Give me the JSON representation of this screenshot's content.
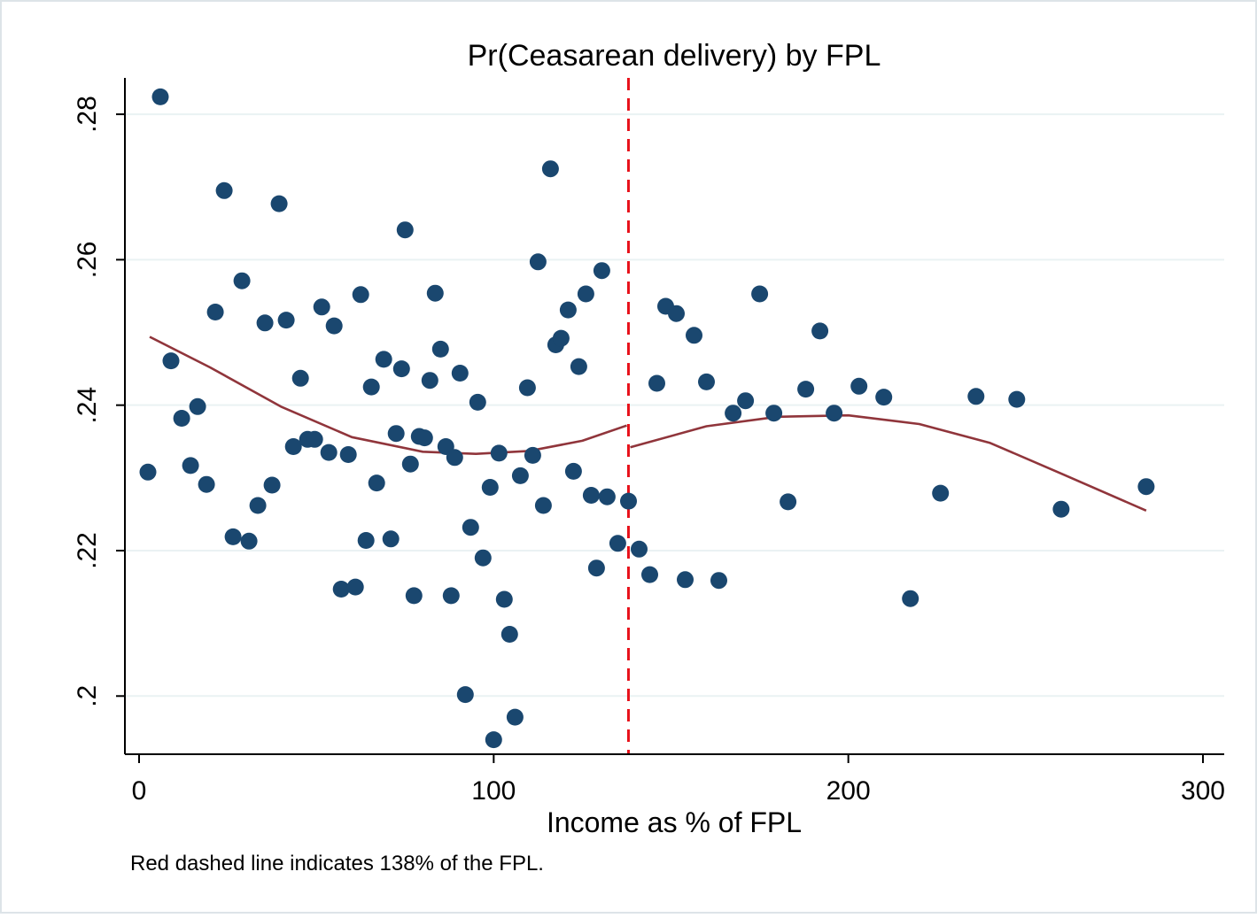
{
  "chart_data": {
    "type": "scatter",
    "title": "Pr(Ceasarean delivery) by FPL",
    "xlabel": "Income as % of FPL",
    "ylabel": "",
    "note": "Red dashed line indicates 138% of the FPL.",
    "xlim": [
      -4,
      306
    ],
    "ylim": [
      0.192,
      0.285
    ],
    "xticks": [
      0,
      100,
      200,
      300
    ],
    "xtick_labels": [
      "0",
      "100",
      "200",
      "300"
    ],
    "yticks": [
      0.2,
      0.22,
      0.24,
      0.26,
      0.28
    ],
    "ytick_labels": [
      ".2",
      ".22",
      ".24",
      ".26",
      ".28"
    ],
    "grid": true,
    "legend": "none",
    "threshold": {
      "x": 138,
      "color": "#e8111a",
      "style": "dashed"
    },
    "colors": {
      "points": "#1a476f",
      "fit": "#90353b",
      "grid": "#eaf2f3",
      "threshold": "#e8111a"
    },
    "points": [
      [
        2.5,
        0.2308
      ],
      [
        6,
        0.2824
      ],
      [
        9,
        0.2461
      ],
      [
        12,
        0.2382
      ],
      [
        14.5,
        0.2317
      ],
      [
        16.5,
        0.2398
      ],
      [
        19,
        0.2291
      ],
      [
        21.5,
        0.2528
      ],
      [
        24,
        0.2695
      ],
      [
        26.5,
        0.2219
      ],
      [
        29,
        0.2571
      ],
      [
        31,
        0.2213
      ],
      [
        33.5,
        0.2262
      ],
      [
        35.5,
        0.2513
      ],
      [
        37.5,
        0.229
      ],
      [
        39.5,
        0.2677
      ],
      [
        41.5,
        0.2517
      ],
      [
        43.5,
        0.2343
      ],
      [
        45.5,
        0.2437
      ],
      [
        47.5,
        0.2353
      ],
      [
        49.5,
        0.2353
      ],
      [
        51.5,
        0.2535
      ],
      [
        53.5,
        0.2335
      ],
      [
        55,
        0.2509
      ],
      [
        57,
        0.2147
      ],
      [
        59,
        0.2332
      ],
      [
        61,
        0.215
      ],
      [
        62.5,
        0.2552
      ],
      [
        64,
        0.2214
      ],
      [
        65.5,
        0.2425
      ],
      [
        67,
        0.2293
      ],
      [
        69,
        0.2463
      ],
      [
        71,
        0.2216
      ],
      [
        72.5,
        0.2361
      ],
      [
        74,
        0.245
      ],
      [
        75,
        0.2641
      ],
      [
        76.5,
        0.2319
      ],
      [
        77.5,
        0.2138
      ],
      [
        79,
        0.2357
      ],
      [
        80.5,
        0.2355
      ],
      [
        82,
        0.2434
      ],
      [
        83.5,
        0.2554
      ],
      [
        85,
        0.2477
      ],
      [
        86.5,
        0.2343
      ],
      [
        88,
        0.2138
      ],
      [
        89,
        0.2328
      ],
      [
        90.5,
        0.2444
      ],
      [
        92,
        0.2002
      ],
      [
        93.5,
        0.2232
      ],
      [
        95.5,
        0.2404
      ],
      [
        97,
        0.219
      ],
      [
        99,
        0.2287
      ],
      [
        100,
        0.194
      ],
      [
        101.5,
        0.2334
      ],
      [
        103,
        0.2133
      ],
      [
        104.5,
        0.2085
      ],
      [
        106,
        0.1971
      ],
      [
        107.5,
        0.2303
      ],
      [
        109.5,
        0.2424
      ],
      [
        111,
        0.2331
      ],
      [
        112.5,
        0.2597
      ],
      [
        114,
        0.2262
      ],
      [
        116,
        0.2725
      ],
      [
        117.5,
        0.2483
      ],
      [
        119,
        0.2492
      ],
      [
        121,
        0.2531
      ],
      [
        122.5,
        0.2309
      ],
      [
        124,
        0.2453
      ],
      [
        126,
        0.2553
      ],
      [
        127.5,
        0.2276
      ],
      [
        129,
        0.2176
      ],
      [
        130.5,
        0.2585
      ],
      [
        132,
        0.2274
      ],
      [
        135,
        0.221
      ],
      [
        138,
        0.2268
      ],
      [
        141,
        0.2202
      ],
      [
        144,
        0.2167
      ],
      [
        146,
        0.243
      ],
      [
        148.5,
        0.2536
      ],
      [
        151.5,
        0.2526
      ],
      [
        154,
        0.216
      ],
      [
        156.5,
        0.2496
      ],
      [
        160,
        0.2432
      ],
      [
        163.5,
        0.2159
      ],
      [
        167.5,
        0.2389
      ],
      [
        171,
        0.2406
      ],
      [
        175,
        0.2553
      ],
      [
        179,
        0.2389
      ],
      [
        183,
        0.2267
      ],
      [
        188,
        0.2422
      ],
      [
        192,
        0.2502
      ],
      [
        196,
        0.2389
      ],
      [
        203,
        0.2426
      ],
      [
        210,
        0.2411
      ],
      [
        217.5,
        0.2134
      ],
      [
        226,
        0.2279
      ],
      [
        236,
        0.2412
      ],
      [
        247.5,
        0.2408
      ],
      [
        260,
        0.2257
      ],
      [
        284,
        0.2288
      ]
    ],
    "fit_left": [
      [
        3,
        0.2494
      ],
      [
        20,
        0.2452
      ],
      [
        40,
        0.2398
      ],
      [
        60,
        0.2356
      ],
      [
        80,
        0.2336
      ],
      [
        95,
        0.2333
      ],
      [
        110,
        0.2337
      ],
      [
        125,
        0.2351
      ],
      [
        137.5,
        0.2372
      ]
    ],
    "fit_right": [
      [
        138.5,
        0.2342
      ],
      [
        160,
        0.2371
      ],
      [
        180,
        0.2384
      ],
      [
        200,
        0.2386
      ],
      [
        220,
        0.2374
      ],
      [
        240,
        0.2348
      ],
      [
        260,
        0.2306
      ],
      [
        284,
        0.2255
      ]
    ]
  }
}
